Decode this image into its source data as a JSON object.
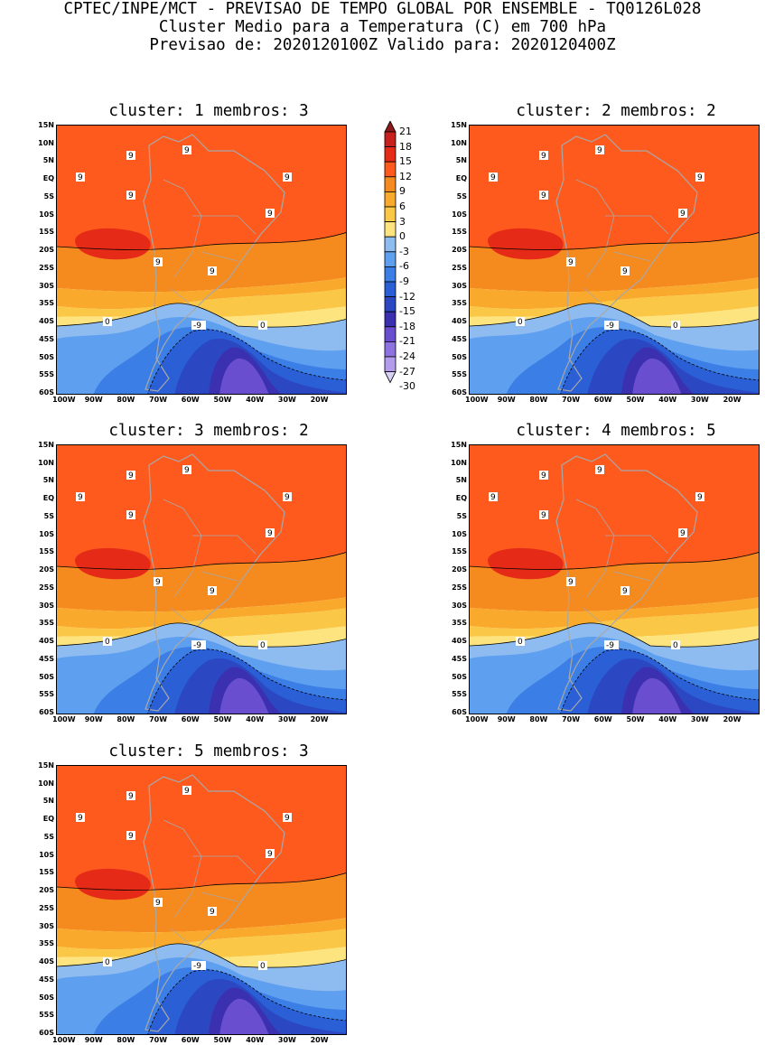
{
  "header": {
    "line1": "CPTEC/INPE/MCT - PREVISAO DE TEMPO GLOBAL POR ENSEMBLE - TQ0126L028",
    "line2": "Cluster Medio para a Temperatura (C) em 700 hPa",
    "line3": "Previsao de: 2020120100Z   Valido para: 2020120400Z"
  },
  "axes": {
    "lat_labels": [
      "15N",
      "10N",
      "5N",
      "EQ",
      "5S",
      "10S",
      "15S",
      "20S",
      "25S",
      "30S",
      "35S",
      "40S",
      "45S",
      "50S",
      "55S",
      "60S"
    ],
    "lon_labels": [
      "100W",
      "90W",
      "80W",
      "70W",
      "60W",
      "50W",
      "40W",
      "30W",
      "20W"
    ]
  },
  "colorbar": {
    "levels": [
      "21",
      "18",
      "15",
      "12",
      "9",
      "6",
      "3",
      "0",
      "-3",
      "-6",
      "-9",
      "-12",
      "-15",
      "-18",
      "-21",
      "-24",
      "-27",
      "-30"
    ],
    "colors": [
      "#8b1a1a",
      "#c81f1f",
      "#e52a17",
      "#ff5a1e",
      "#f58a1f",
      "#f9aa2c",
      "#fbc746",
      "#fde47f",
      "#8fbcf0",
      "#5f9ff0",
      "#3b7fe6",
      "#2a5fd6",
      "#2b47c2",
      "#3a30b0",
      "#6a4ed0",
      "#8e72e2",
      "#b49cec",
      "#dad0f6"
    ]
  },
  "clusters": [
    {
      "title": "cluster: 1   membros: 3",
      "contour_label_warm": "9",
      "contour_label_zero": "0",
      "contour_label_cold": "-9"
    },
    {
      "title": "cluster: 2   membros: 2",
      "contour_label_warm": "9",
      "contour_label_zero": "0",
      "contour_label_cold": "-9"
    },
    {
      "title": "cluster: 3   membros: 2",
      "contour_label_warm": "9",
      "contour_label_zero": "0",
      "contour_label_cold": "-9"
    },
    {
      "title": "cluster: 4   membros: 5",
      "contour_label_warm": "9",
      "contour_label_zero": "0",
      "contour_label_cold": "-9"
    },
    {
      "title": "cluster: 5   membros: 3",
      "contour_label_warm": "9",
      "contour_label_zero": "0",
      "contour_label_cold": "-9"
    }
  ]
}
